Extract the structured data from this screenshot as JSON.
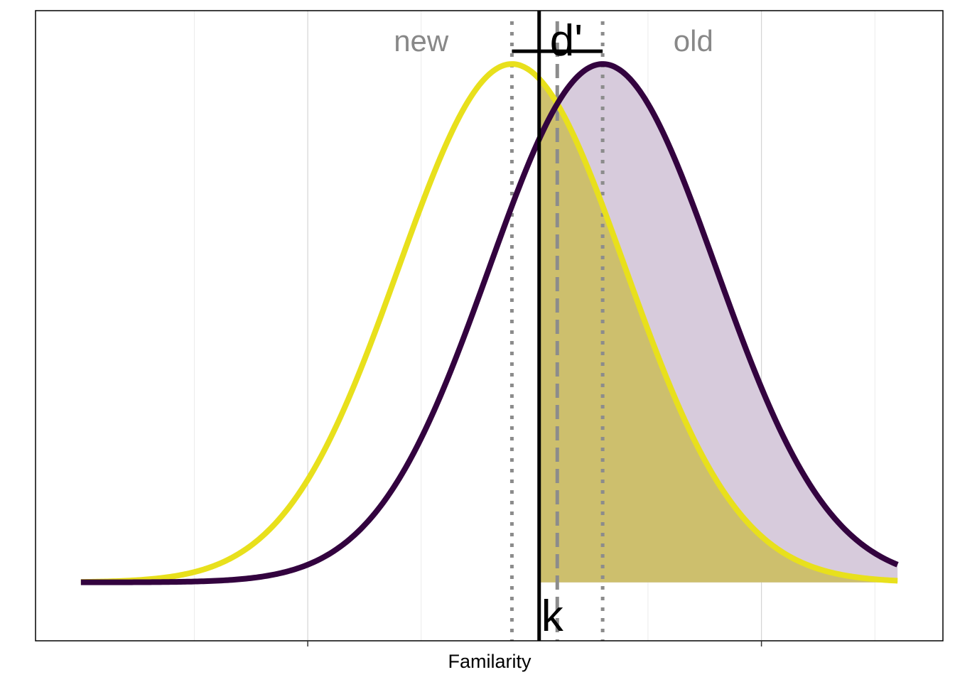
{
  "chart_data": {
    "type": "line",
    "xlabel": "Familarity",
    "ylabel": "",
    "title": "",
    "xlim": [
      -3.4,
      4.6
    ],
    "ylim": [
      -0.045,
      0.44
    ],
    "x_range": [
      -3.0,
      4.2
    ],
    "major_ticks": [
      -1,
      3
    ],
    "minor_grid": [
      -2,
      0,
      2,
      4
    ],
    "grid": true,
    "legend": "none",
    "series": [
      {
        "key": "new",
        "mean": 0.8,
        "sd": 1.0,
        "color": "#e8e01c",
        "fill": false
      },
      {
        "key": "old",
        "mean": 1.6,
        "sd": 1.0,
        "color": "#33033f",
        "fill": "#d7cbdc"
      }
    ],
    "criterion_k": 1.04,
    "midpoint": 1.2,
    "overlap_fill_color": "#ccbe66",
    "labels": {
      "new": "new",
      "old": "old",
      "dprime": "d'",
      "criterion": "k"
    }
  }
}
